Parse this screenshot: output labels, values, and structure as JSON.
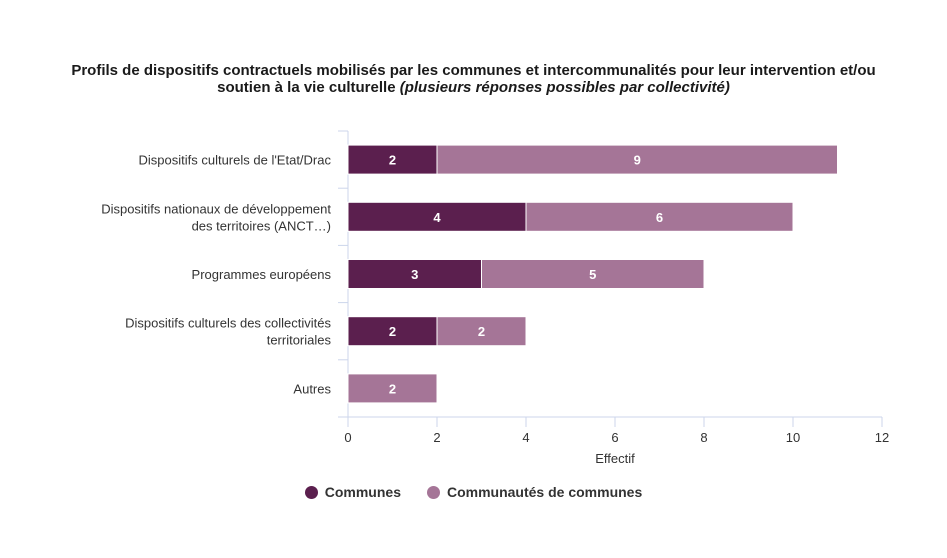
{
  "chart_data": {
    "type": "bar",
    "orientation": "horizontal",
    "stacked": true,
    "title": "Profils de dispositifs contractuels mobilisés par les communes et intercommunalités pour leur intervention et/ou soutien à la vie culturelle",
    "title_italic": "(plusieurs réponses possibles par collectivité)",
    "categories": [
      [
        "Dispositifs culturels de l'Etat/Drac"
      ],
      [
        "Dispositifs nationaux de développement",
        "des territoires (ANCT…)"
      ],
      [
        "Programmes européens"
      ],
      [
        "Dispositifs culturels des collectivités",
        "territoriales"
      ],
      [
        "Autres"
      ]
    ],
    "series": [
      {
        "name": "Communes",
        "color": "#5b1f4e",
        "values": [
          2,
          4,
          3,
          2,
          0
        ]
      },
      {
        "name": "Communautés de communes",
        "color": "#a57597",
        "values": [
          9,
          6,
          5,
          2,
          2
        ]
      }
    ],
    "xlabel": "Effectif",
    "ylabel": "",
    "xlim": [
      0,
      12
    ],
    "xticks": [
      "0",
      "2",
      "4",
      "6",
      "8",
      "10",
      "12"
    ],
    "grid": false,
    "legend_position": "bottom-center"
  }
}
